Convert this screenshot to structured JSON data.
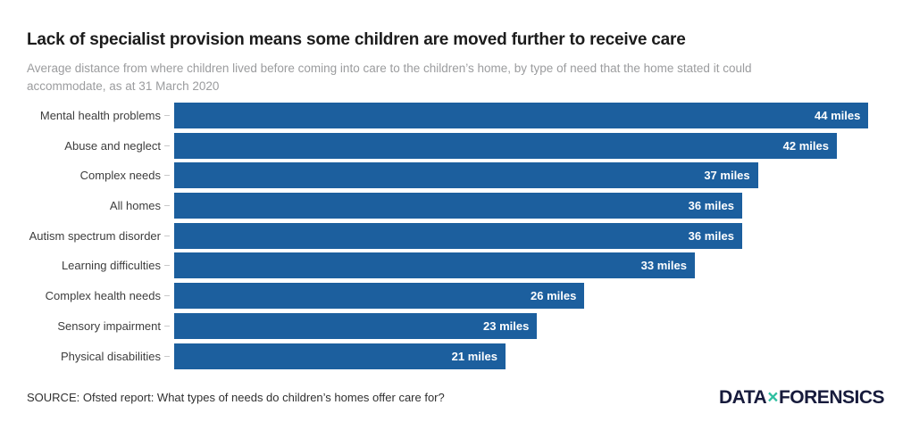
{
  "page": {
    "title": "Lack of specialist provision means some children are moved further to receive care",
    "subtitle": "Average distance from where children lived before coming into care to the children’s home, by type of need that the home stated it could accommodate, as at 31 March 2020",
    "source": "SOURCE: Ofsted report: What types of needs do children’s homes offer care for?"
  },
  "logo": {
    "part1": "DATA",
    "separator": "×",
    "part2": "FORENSICS",
    "text_color": "#171b3c",
    "x_color": "#2fbfa1"
  },
  "chart_data": {
    "type": "bar",
    "orientation": "horizontal",
    "title": "Lack of specialist provision means some children are moved further to receive care",
    "subtitle": "Average distance from where children lived before coming into care to the children’s home, by type of need that the home stated it could accommodate, as at 31 March 2020",
    "categories": [
      "Mental health problems",
      "Abuse and neglect",
      "Complex needs",
      "All homes",
      "Autism spectrum disorder",
      "Learning difficulties",
      "Complex health needs",
      "Sensory impairment",
      "Physical disabilities"
    ],
    "values": [
      44,
      42,
      37,
      36,
      36,
      33,
      26,
      23,
      21
    ],
    "value_labels": [
      "44 miles",
      "42 miles",
      "37 miles",
      "36 miles",
      "36 miles",
      "33 miles",
      "26 miles",
      "23 miles",
      "21 miles"
    ],
    "unit": "miles",
    "xlabel": "",
    "ylabel": "",
    "xlim": [
      0,
      45
    ],
    "grid": false,
    "legend": false,
    "bar_color": "#1c5f9e",
    "value_label_position": "inside-end",
    "source": "SOURCE: Ofsted report: What types of needs do children’s homes offer care for?"
  }
}
